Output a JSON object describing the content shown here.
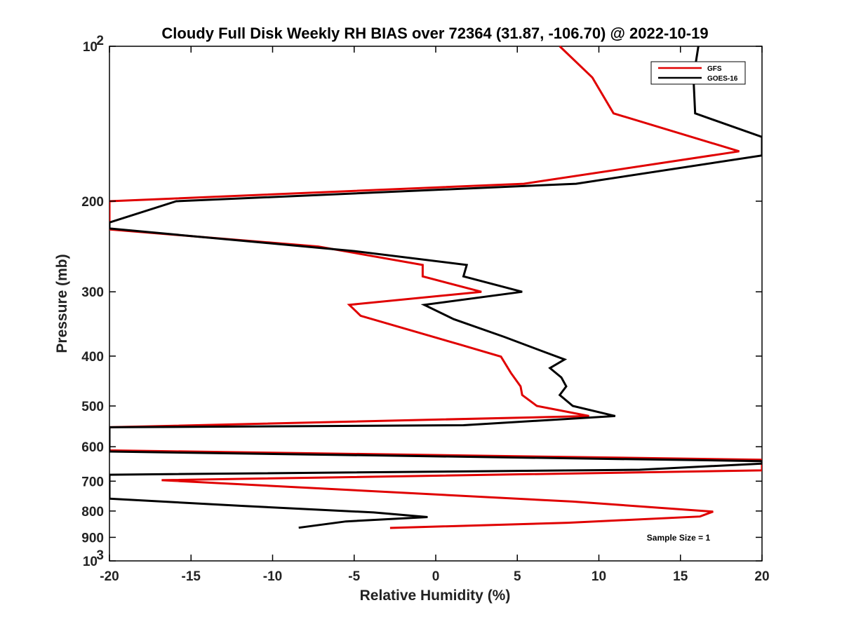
{
  "chart_data": {
    "type": "line",
    "title": "Cloudy Full Disk Weekly RH BIAS over 72364 (31.87, -106.70) @ 2022-10-19",
    "xlabel": "Relative Humidity (%)",
    "ylabel": "Pressure (mb)",
    "xlim": [
      -20,
      20
    ],
    "ylim": [
      100,
      1000
    ],
    "y_scale": "log",
    "y_reversed": true,
    "grid": false,
    "legend_position": "top-right",
    "xticks": [
      "-20",
      "-15",
      "-10",
      "-5",
      "0",
      "5",
      "10",
      "15",
      "20"
    ],
    "yticks": [
      {
        "value": 100,
        "base": "10",
        "exp": "2"
      },
      {
        "value": 200,
        "base": "200",
        "exp": ""
      },
      {
        "value": 300,
        "base": "300",
        "exp": ""
      },
      {
        "value": 400,
        "base": "400",
        "exp": ""
      },
      {
        "value": 500,
        "base": "500",
        "exp": ""
      },
      {
        "value": 600,
        "base": "600",
        "exp": ""
      },
      {
        "value": 700,
        "base": "700",
        "exp": ""
      },
      {
        "value": 800,
        "base": "800",
        "exp": ""
      },
      {
        "value": 900,
        "base": "900",
        "exp": ""
      },
      {
        "value": 1000,
        "base": "10",
        "exp": "3"
      }
    ],
    "annotation": "Sample Size = 1",
    "series": [
      {
        "name": "GFS",
        "color": "#e00000",
        "points": [
          [
            7.6,
            100
          ],
          [
            9.6,
            115
          ],
          [
            10.9,
            135
          ],
          [
            18.6,
            160
          ],
          [
            5.4,
            185
          ],
          [
            -20,
            200
          ],
          [
            -20,
            227
          ],
          [
            -7.2,
            245
          ],
          [
            -0.8,
            266
          ],
          [
            -0.8,
            280
          ],
          [
            2.8,
            300
          ],
          [
            -5.3,
            318
          ],
          [
            -4.6,
            334
          ],
          [
            1.5,
            380
          ],
          [
            4.0,
            401
          ],
          [
            4.6,
            431
          ],
          [
            5.2,
            458
          ],
          [
            5.3,
            476
          ],
          [
            6.2,
            500
          ],
          [
            9.4,
            523
          ],
          [
            -20,
            550
          ],
          [
            -20,
            610
          ],
          [
            20,
            636
          ],
          [
            20,
            667
          ],
          [
            -16.8,
            697
          ],
          [
            8.4,
            767
          ],
          [
            17.0,
            802
          ],
          [
            16.2,
            820
          ],
          [
            8.1,
            843
          ],
          [
            -2.8,
            863
          ]
        ]
      },
      {
        "name": "GOES-16",
        "color": "#000000",
        "points": [
          [
            16.1,
            100
          ],
          [
            15.8,
            115
          ],
          [
            15.9,
            135
          ],
          [
            20,
            150
          ],
          [
            20,
            163
          ],
          [
            8.6,
            185
          ],
          [
            -15.9,
            200
          ],
          [
            -20,
            220
          ],
          [
            -20,
            226
          ],
          [
            -5.0,
            250
          ],
          [
            1.9,
            266
          ],
          [
            1.7,
            280
          ],
          [
            5.3,
            300
          ],
          [
            -0.7,
            318
          ],
          [
            1.1,
            339
          ],
          [
            4.2,
            367
          ],
          [
            6.6,
            392
          ],
          [
            7.9,
            406
          ],
          [
            7.0,
            422
          ],
          [
            7.7,
            440
          ],
          [
            8.0,
            458
          ],
          [
            7.6,
            476
          ],
          [
            8.4,
            500
          ],
          [
            11.0,
            523
          ],
          [
            1.7,
            545
          ],
          [
            -20,
            550
          ],
          [
            -20,
            613
          ],
          [
            20,
            640
          ],
          [
            20,
            647
          ],
          [
            12.5,
            665
          ],
          [
            -20,
            680
          ],
          [
            -20,
            757
          ],
          [
            -11.8,
            782
          ],
          [
            -3.8,
            805
          ],
          [
            -0.5,
            822
          ],
          [
            -5.5,
            838
          ],
          [
            -8.4,
            862
          ]
        ]
      }
    ]
  }
}
